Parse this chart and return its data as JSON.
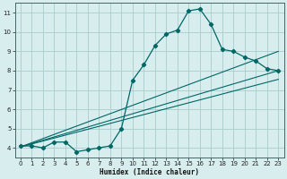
{
  "xlabel": "Humidex (Indice chaleur)",
  "background_color": "#d8eeee",
  "grid_color": "#a8cccc",
  "line_color": "#006666",
  "x_data": [
    0,
    1,
    2,
    3,
    4,
    5,
    6,
    7,
    8,
    9,
    10,
    11,
    12,
    13,
    14,
    15,
    16,
    17,
    18,
    19,
    20,
    21,
    22,
    23
  ],
  "y_data": [
    4.1,
    4.1,
    4.0,
    4.3,
    4.3,
    3.8,
    3.9,
    4.0,
    4.1,
    5.0,
    7.5,
    8.3,
    9.3,
    9.9,
    10.1,
    11.1,
    11.2,
    10.4,
    9.1,
    9.0,
    8.7,
    8.5,
    8.1,
    8.0
  ],
  "reg_lines": [
    {
      "x0": 0,
      "y0": 4.05,
      "x1": 23,
      "y1": 8.0
    },
    {
      "x0": 0,
      "y0": 4.05,
      "x1": 23,
      "y1": 7.55
    },
    {
      "x0": 0,
      "y0": 4.05,
      "x1": 23,
      "y1": 9.0
    }
  ],
  "xlim": [
    -0.5,
    23.5
  ],
  "ylim": [
    3.5,
    11.5
  ],
  "yticks": [
    4,
    5,
    6,
    7,
    8,
    9,
    10,
    11
  ],
  "xticks": [
    0,
    1,
    2,
    3,
    4,
    5,
    6,
    7,
    8,
    9,
    10,
    11,
    12,
    13,
    14,
    15,
    16,
    17,
    18,
    19,
    20,
    21,
    22,
    23
  ]
}
